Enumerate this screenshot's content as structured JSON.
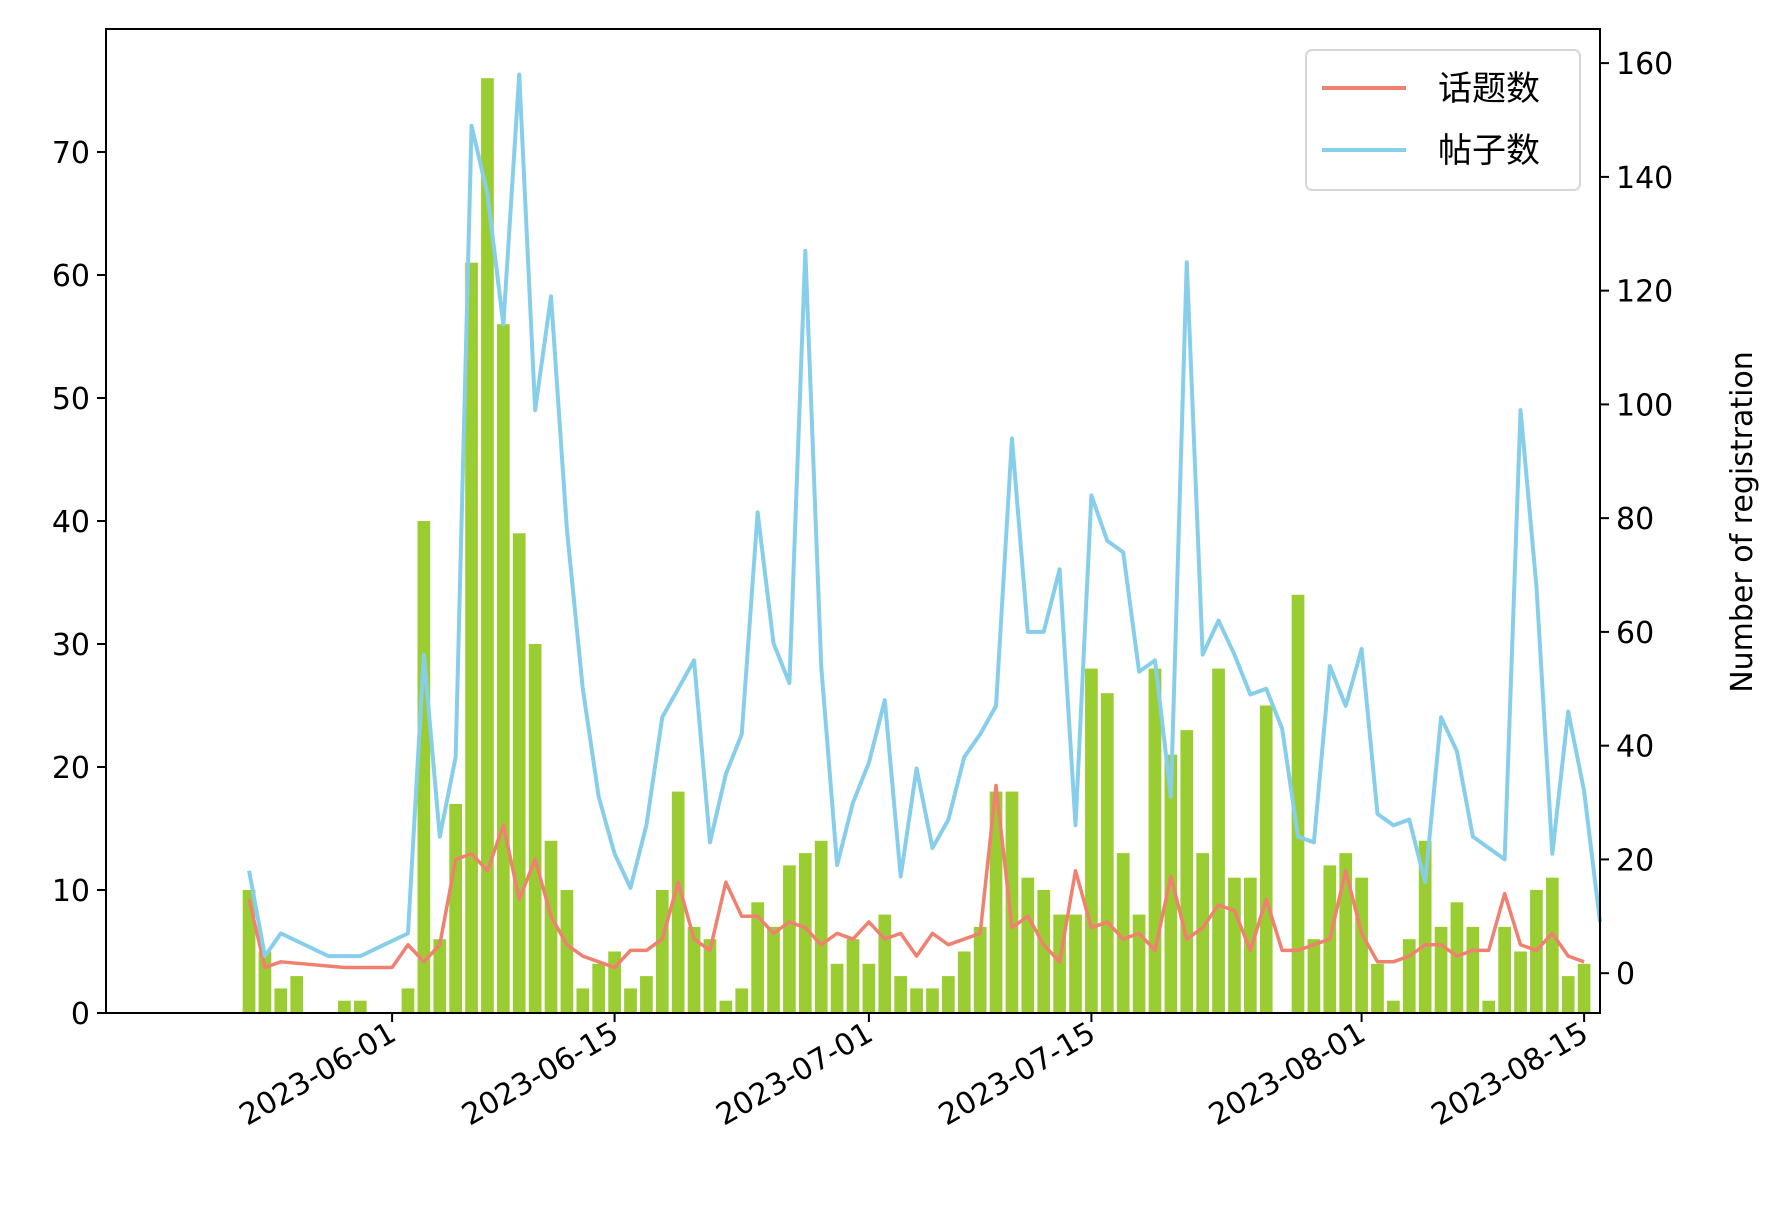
{
  "chart_data": {
    "type": "bar+line",
    "title": "",
    "xlabel": "",
    "ylabel_left": "",
    "ylabel_right": "Number of registration",
    "x_ticks": [
      "2023-06-01",
      "2023-06-15",
      "2023-07-01",
      "2023-07-15",
      "2023-08-01",
      "2023-08-15"
    ],
    "x_range": [
      "2023-05-14",
      "2023-08-16"
    ],
    "y_left_range": [
      0,
      80
    ],
    "y_left_ticks": [
      0,
      10,
      20,
      30,
      40,
      50,
      60,
      70
    ],
    "y_right_range": [
      -7,
      166
    ],
    "y_right_ticks": [
      0,
      20,
      40,
      60,
      80,
      100,
      120,
      140,
      160
    ],
    "grid": false,
    "legend_position": "top-right",
    "colors": {
      "bars": "#9acd32",
      "topics": "#f08070",
      "posts": "#87ceeb",
      "axis": "#000000"
    },
    "bar_series": {
      "axis": "left",
      "points": [
        [
          "2023-05-23",
          10
        ],
        [
          "2023-05-24",
          5
        ],
        [
          "2023-05-25",
          2
        ],
        [
          "2023-05-26",
          3
        ],
        [
          "2023-05-29",
          1
        ],
        [
          "2023-05-30",
          1
        ],
        [
          "2023-06-02",
          2
        ],
        [
          "2023-06-03",
          40
        ],
        [
          "2023-06-04",
          6
        ],
        [
          "2023-06-05",
          17
        ],
        [
          "2023-06-06",
          61
        ],
        [
          "2023-06-07",
          76
        ],
        [
          "2023-06-08",
          56
        ],
        [
          "2023-06-09",
          39
        ],
        [
          "2023-06-10",
          30
        ],
        [
          "2023-06-11",
          14
        ],
        [
          "2023-06-12",
          10
        ],
        [
          "2023-06-13",
          2
        ],
        [
          "2023-06-14",
          4
        ],
        [
          "2023-06-15",
          5
        ],
        [
          "2023-06-16",
          2
        ],
        [
          "2023-06-17",
          3
        ],
        [
          "2023-06-18",
          10
        ],
        [
          "2023-06-19",
          18
        ],
        [
          "2023-06-20",
          7
        ],
        [
          "2023-06-21",
          6
        ],
        [
          "2023-06-22",
          1
        ],
        [
          "2023-06-23",
          2
        ],
        [
          "2023-06-24",
          9
        ],
        [
          "2023-06-25",
          7
        ],
        [
          "2023-06-26",
          12
        ],
        [
          "2023-06-27",
          13
        ],
        [
          "2023-06-28",
          14
        ],
        [
          "2023-06-29",
          4
        ],
        [
          "2023-06-30",
          6
        ],
        [
          "2023-07-01",
          4
        ],
        [
          "2023-07-02",
          8
        ],
        [
          "2023-07-03",
          3
        ],
        [
          "2023-07-04",
          2
        ],
        [
          "2023-07-05",
          2
        ],
        [
          "2023-07-06",
          3
        ],
        [
          "2023-07-07",
          5
        ],
        [
          "2023-07-08",
          7
        ],
        [
          "2023-07-09",
          18
        ],
        [
          "2023-07-10",
          18
        ],
        [
          "2023-07-11",
          11
        ],
        [
          "2023-07-12",
          10
        ],
        [
          "2023-07-13",
          8
        ],
        [
          "2023-07-14",
          8
        ],
        [
          "2023-07-15",
          28
        ],
        [
          "2023-07-16",
          26
        ],
        [
          "2023-07-17",
          13
        ],
        [
          "2023-07-18",
          8
        ],
        [
          "2023-07-19",
          28
        ],
        [
          "2023-07-20",
          21
        ],
        [
          "2023-07-21",
          23
        ],
        [
          "2023-07-22",
          13
        ],
        [
          "2023-07-23",
          28
        ],
        [
          "2023-07-24",
          11
        ],
        [
          "2023-07-25",
          11
        ],
        [
          "2023-07-26",
          25
        ],
        [
          "2023-07-28",
          34
        ],
        [
          "2023-07-29",
          6
        ],
        [
          "2023-07-30",
          12
        ],
        [
          "2023-07-31",
          13
        ],
        [
          "2023-08-01",
          11
        ],
        [
          "2023-08-02",
          4
        ],
        [
          "2023-08-03",
          1
        ],
        [
          "2023-08-04",
          6
        ],
        [
          "2023-08-05",
          14
        ],
        [
          "2023-08-06",
          7
        ],
        [
          "2023-08-07",
          9
        ],
        [
          "2023-08-08",
          7
        ],
        [
          "2023-08-09",
          1
        ],
        [
          "2023-08-10",
          7
        ],
        [
          "2023-08-11",
          5
        ],
        [
          "2023-08-12",
          10
        ],
        [
          "2023-08-13",
          11
        ],
        [
          "2023-08-14",
          3
        ],
        [
          "2023-08-15",
          4
        ]
      ]
    },
    "series": [
      {
        "name": "话题数",
        "axis": "right",
        "color": "#f08070",
        "points": [
          [
            "2023-05-23",
            13
          ],
          [
            "2023-05-24",
            1
          ],
          [
            "2023-05-25",
            2
          ],
          [
            "2023-05-29",
            1
          ],
          [
            "2023-06-01",
            1
          ],
          [
            "2023-06-02",
            5
          ],
          [
            "2023-06-03",
            2
          ],
          [
            "2023-06-04",
            5
          ],
          [
            "2023-06-05",
            20
          ],
          [
            "2023-06-06",
            21
          ],
          [
            "2023-06-07",
            18
          ],
          [
            "2023-06-08",
            26
          ],
          [
            "2023-06-09",
            13
          ],
          [
            "2023-06-10",
            20
          ],
          [
            "2023-06-11",
            10
          ],
          [
            "2023-06-12",
            5
          ],
          [
            "2023-06-13",
            3
          ],
          [
            "2023-06-14",
            2
          ],
          [
            "2023-06-15",
            1
          ],
          [
            "2023-06-16",
            4
          ],
          [
            "2023-06-17",
            4
          ],
          [
            "2023-06-18",
            6
          ],
          [
            "2023-06-19",
            16
          ],
          [
            "2023-06-20",
            6
          ],
          [
            "2023-06-21",
            4
          ],
          [
            "2023-06-22",
            16
          ],
          [
            "2023-06-23",
            10
          ],
          [
            "2023-06-24",
            10
          ],
          [
            "2023-06-25",
            7
          ],
          [
            "2023-06-26",
            9
          ],
          [
            "2023-06-27",
            8
          ],
          [
            "2023-06-28",
            5
          ],
          [
            "2023-06-29",
            7
          ],
          [
            "2023-06-30",
            6
          ],
          [
            "2023-07-01",
            9
          ],
          [
            "2023-07-02",
            6
          ],
          [
            "2023-07-03",
            7
          ],
          [
            "2023-07-04",
            3
          ],
          [
            "2023-07-05",
            7
          ],
          [
            "2023-07-06",
            5
          ],
          [
            "2023-07-07",
            6
          ],
          [
            "2023-07-08",
            7
          ],
          [
            "2023-07-09",
            33
          ],
          [
            "2023-07-10",
            8
          ],
          [
            "2023-07-11",
            10
          ],
          [
            "2023-07-12",
            5
          ],
          [
            "2023-07-13",
            2
          ],
          [
            "2023-07-14",
            18
          ],
          [
            "2023-07-15",
            8
          ],
          [
            "2023-07-16",
            9
          ],
          [
            "2023-07-17",
            6
          ],
          [
            "2023-07-18",
            7
          ],
          [
            "2023-07-19",
            4
          ],
          [
            "2023-07-20",
            17
          ],
          [
            "2023-07-21",
            6
          ],
          [
            "2023-07-22",
            8
          ],
          [
            "2023-07-23",
            12
          ],
          [
            "2023-07-24",
            11
          ],
          [
            "2023-07-25",
            4
          ],
          [
            "2023-07-26",
            13
          ],
          [
            "2023-07-27",
            4
          ],
          [
            "2023-07-28",
            4
          ],
          [
            "2023-07-29",
            5
          ],
          [
            "2023-07-30",
            6
          ],
          [
            "2023-07-31",
            18
          ],
          [
            "2023-08-01",
            7
          ],
          [
            "2023-08-02",
            2
          ],
          [
            "2023-08-03",
            2
          ],
          [
            "2023-08-04",
            3
          ],
          [
            "2023-08-05",
            5
          ],
          [
            "2023-08-06",
            5
          ],
          [
            "2023-08-07",
            3
          ],
          [
            "2023-08-08",
            4
          ],
          [
            "2023-08-09",
            4
          ],
          [
            "2023-08-10",
            14
          ],
          [
            "2023-08-11",
            5
          ],
          [
            "2023-08-12",
            4
          ],
          [
            "2023-08-13",
            7
          ],
          [
            "2023-08-14",
            3
          ],
          [
            "2023-08-15",
            2
          ]
        ]
      },
      {
        "name": "帖子数",
        "axis": "right",
        "color": "#87ceeb",
        "points": [
          [
            "2023-05-23",
            18
          ],
          [
            "2023-05-24",
            3
          ],
          [
            "2023-05-25",
            7
          ],
          [
            "2023-05-28",
            3
          ],
          [
            "2023-05-30",
            3
          ],
          [
            "2023-06-02",
            7
          ],
          [
            "2023-06-03",
            56
          ],
          [
            "2023-06-04",
            24
          ],
          [
            "2023-06-05",
            38
          ],
          [
            "2023-06-06",
            149
          ],
          [
            "2023-06-07",
            137
          ],
          [
            "2023-06-08",
            114
          ],
          [
            "2023-06-09",
            158
          ],
          [
            "2023-06-10",
            99
          ],
          [
            "2023-06-11",
            119
          ],
          [
            "2023-06-12",
            78
          ],
          [
            "2023-06-13",
            50
          ],
          [
            "2023-06-14",
            31
          ],
          [
            "2023-06-15",
            21
          ],
          [
            "2023-06-16",
            15
          ],
          [
            "2023-06-17",
            26
          ],
          [
            "2023-06-18",
            45
          ],
          [
            "2023-06-19",
            50
          ],
          [
            "2023-06-20",
            55
          ],
          [
            "2023-06-21",
            23
          ],
          [
            "2023-06-22",
            35
          ],
          [
            "2023-06-23",
            42
          ],
          [
            "2023-06-24",
            81
          ],
          [
            "2023-06-25",
            58
          ],
          [
            "2023-06-26",
            51
          ],
          [
            "2023-06-27",
            127
          ],
          [
            "2023-06-28",
            54
          ],
          [
            "2023-06-29",
            19
          ],
          [
            "2023-06-30",
            30
          ],
          [
            "2023-07-01",
            37
          ],
          [
            "2023-07-02",
            48
          ],
          [
            "2023-07-03",
            17
          ],
          [
            "2023-07-04",
            36
          ],
          [
            "2023-07-05",
            22
          ],
          [
            "2023-07-06",
            27
          ],
          [
            "2023-07-07",
            38
          ],
          [
            "2023-07-08",
            42
          ],
          [
            "2023-07-09",
            47
          ],
          [
            "2023-07-10",
            94
          ],
          [
            "2023-07-11",
            60
          ],
          [
            "2023-07-12",
            60
          ],
          [
            "2023-07-13",
            71
          ],
          [
            "2023-07-14",
            26
          ],
          [
            "2023-07-15",
            84
          ],
          [
            "2023-07-16",
            76
          ],
          [
            "2023-07-17",
            74
          ],
          [
            "2023-07-18",
            53
          ],
          [
            "2023-07-19",
            55
          ],
          [
            "2023-07-20",
            31
          ],
          [
            "2023-07-21",
            125
          ],
          [
            "2023-07-22",
            56
          ],
          [
            "2023-07-23",
            62
          ],
          [
            "2023-07-24",
            56
          ],
          [
            "2023-07-25",
            49
          ],
          [
            "2023-07-26",
            50
          ],
          [
            "2023-07-27",
            43
          ],
          [
            "2023-07-28",
            24
          ],
          [
            "2023-07-29",
            23
          ],
          [
            "2023-07-30",
            54
          ],
          [
            "2023-07-31",
            47
          ],
          [
            "2023-08-01",
            57
          ],
          [
            "2023-08-02",
            28
          ],
          [
            "2023-08-03",
            26
          ],
          [
            "2023-08-04",
            27
          ],
          [
            "2023-08-05",
            16
          ],
          [
            "2023-08-06",
            45
          ],
          [
            "2023-08-07",
            39
          ],
          [
            "2023-08-08",
            24
          ],
          [
            "2023-08-09",
            22
          ],
          [
            "2023-08-10",
            20
          ],
          [
            "2023-08-11",
            99
          ],
          [
            "2023-08-12",
            68
          ],
          [
            "2023-08-13",
            21
          ],
          [
            "2023-08-14",
            46
          ],
          [
            "2023-08-15",
            32
          ],
          [
            "2023-08-16",
            9
          ]
        ]
      }
    ]
  }
}
